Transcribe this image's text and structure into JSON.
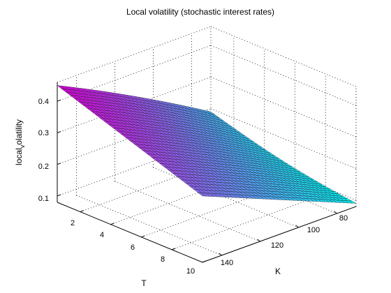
{
  "chart_data": {
    "type": "surface",
    "title": "Local volatility (stochastic interest rates)",
    "xlabel": "T",
    "ylabel": "K",
    "zlabel": "local_volatility",
    "zlabel_display": "local",
    "zlabel_subscript": "v",
    "zlabel_tail": "olatility",
    "x_ticks": [
      "2",
      "4",
      "6",
      "8",
      "10"
    ],
    "y_ticks": [
      "80",
      "100",
      "120",
      "140"
    ],
    "z_ticks": [
      "0.1",
      "0.2",
      "0.3",
      "0.4"
    ],
    "xlim": [
      0.5,
      10
    ],
    "ylim": [
      70,
      150
    ],
    "zlim": [
      0.08,
      0.46
    ],
    "grid": true,
    "colormap": [
      "#00ffff",
      "#ff00ff"
    ],
    "corner_values": [
      {
        "T": 0.5,
        "K": 70,
        "vol": 0.19
      },
      {
        "T": 0.5,
        "K": 150,
        "vol": 0.45
      },
      {
        "T": 10,
        "K": 70,
        "vol": 0.09
      },
      {
        "T": 10,
        "K": 150,
        "vol": 0.29
      }
    ]
  }
}
